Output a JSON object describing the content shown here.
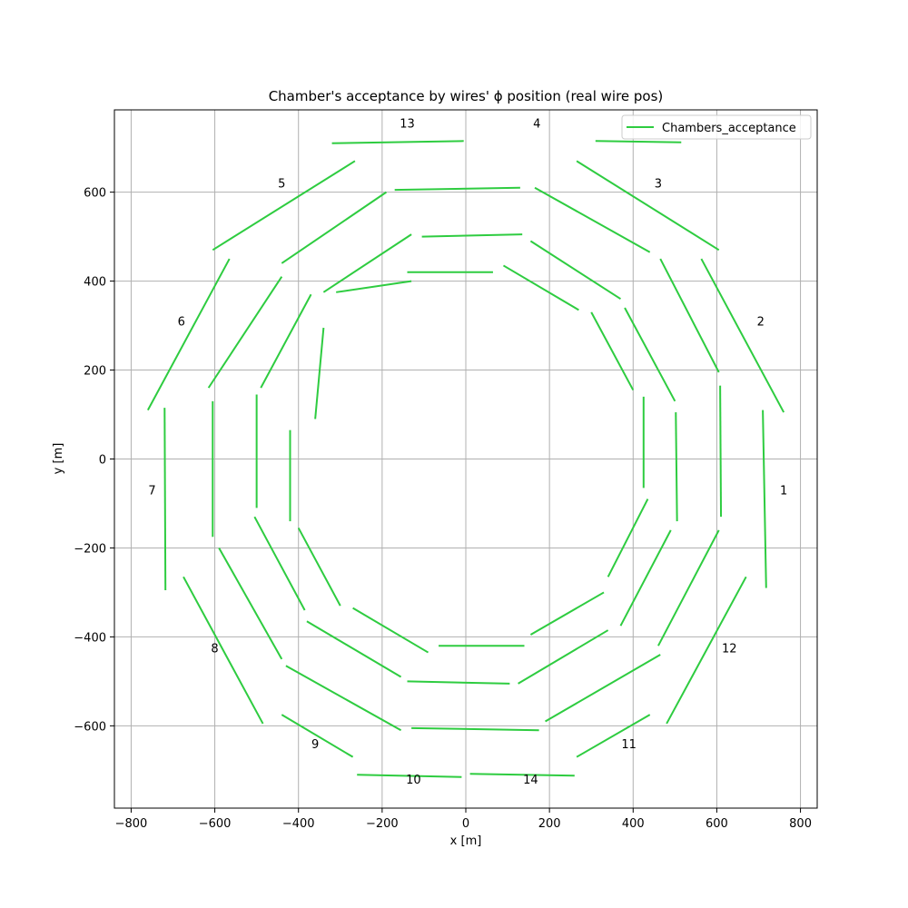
{
  "chart_data": {
    "type": "line",
    "title": "Chamber's acceptance by wires' ϕ position (real wire pos)",
    "xlabel": "x [m]",
    "ylabel": "y [m]",
    "xlim": [
      -840,
      840
    ],
    "ylim": [
      -785,
      785
    ],
    "xticks": [
      -800,
      -600,
      -400,
      -200,
      0,
      200,
      400,
      600,
      800
    ],
    "yticks": [
      -600,
      -400,
      -200,
      0,
      200,
      400,
      600
    ],
    "grid": true,
    "legend": {
      "placement": "top-right",
      "entries": [
        "Chambers_acceptance"
      ]
    },
    "series_color": "#2ecc40",
    "series": [
      {
        "name": "Chambers_acceptance",
        "segments": [
          [
            [
              710,
              110
            ],
            [
              718,
              -290
            ]
          ],
          [
            [
              760,
              105
            ],
            [
              563,
              450
            ]
          ],
          [
            [
              605,
              470
            ],
            [
              265,
              670
            ]
          ],
          [
            [
              515,
              712
            ],
            [
              310,
              715
            ]
          ],
          [
            [
              -320,
              710
            ],
            [
              -5,
              715
            ]
          ],
          [
            [
              -605,
              470
            ],
            [
              -265,
              670
            ]
          ],
          [
            [
              -760,
              110
            ],
            [
              -565,
              450
            ]
          ],
          [
            [
              -720,
              115
            ],
            [
              -718,
              -295
            ]
          ],
          [
            [
              -675,
              -265
            ],
            [
              -485,
              -595
            ]
          ],
          [
            [
              -440,
              -575
            ],
            [
              -270,
              -670
            ]
          ],
          [
            [
              -260,
              -710
            ],
            [
              -10,
              -715
            ]
          ],
          [
            [
              10,
              -708
            ],
            [
              260,
              -712
            ]
          ],
          [
            [
              265,
              -670
            ],
            [
              440,
              -575
            ]
          ],
          [
            [
              480,
              -595
            ],
            [
              670,
              -265
            ]
          ],
          [
            [
              608,
              165
            ],
            [
              610,
              -130
            ]
          ],
          [
            [
              605,
              195
            ],
            [
              465,
              450
            ]
          ],
          [
            [
              440,
              465
            ],
            [
              165,
              610
            ]
          ],
          [
            [
              130,
              610
            ],
            [
              -170,
              605
            ]
          ],
          [
            [
              -190,
              600
            ],
            [
              -440,
              440
            ]
          ],
          [
            [
              -440,
              410
            ],
            [
              -615,
              160
            ]
          ],
          [
            [
              -605,
              130
            ],
            [
              -605,
              -175
            ]
          ],
          [
            [
              -590,
              -200
            ],
            [
              -440,
              -450
            ]
          ],
          [
            [
              -430,
              -465
            ],
            [
              -155,
              -610
            ]
          ],
          [
            [
              -130,
              -605
            ],
            [
              175,
              -610
            ]
          ],
          [
            [
              190,
              -590
            ],
            [
              465,
              -440
            ]
          ],
          [
            [
              460,
              -420
            ],
            [
              605,
              -160
            ]
          ],
          [
            [
              502,
              105
            ],
            [
              505,
              -140
            ]
          ],
          [
            [
              500,
              130
            ],
            [
              380,
              340
            ]
          ],
          [
            [
              370,
              360
            ],
            [
              155,
              490
            ]
          ],
          [
            [
              135,
              505
            ],
            [
              -105,
              500
            ]
          ],
          [
            [
              -130,
              505
            ],
            [
              -340,
              375
            ]
          ],
          [
            [
              -370,
              370
            ],
            [
              -490,
              160
            ]
          ],
          [
            [
              -500,
              145
            ],
            [
              -500,
              -110
            ]
          ],
          [
            [
              -505,
              -130
            ],
            [
              -385,
              -340
            ]
          ],
          [
            [
              -380,
              -365
            ],
            [
              -155,
              -490
            ]
          ],
          [
            [
              -140,
              -500
            ],
            [
              105,
              -505
            ]
          ],
          [
            [
              125,
              -505
            ],
            [
              340,
              -385
            ]
          ],
          [
            [
              370,
              -375
            ],
            [
              490,
              -160
            ]
          ],
          [
            [
              425,
              140
            ],
            [
              425,
              -65
            ]
          ],
          [
            [
              400,
              155
            ],
            [
              300,
              330
            ]
          ],
          [
            [
              270,
              335
            ],
            [
              90,
              435
            ]
          ],
          [
            [
              65,
              420
            ],
            [
              -140,
              420
            ]
          ],
          [
            [
              -130,
              400
            ],
            [
              -310,
              375
            ]
          ],
          [
            [
              -340,
              295
            ],
            [
              -360,
              90
            ]
          ],
          [
            [
              -420,
              65
            ],
            [
              -420,
              -140
            ]
          ],
          [
            [
              -400,
              -155
            ],
            [
              -300,
              -330
            ]
          ],
          [
            [
              -270,
              -335
            ],
            [
              -90,
              -435
            ]
          ],
          [
            [
              -65,
              -420
            ],
            [
              140,
              -420
            ]
          ],
          [
            [
              155,
              -395
            ],
            [
              330,
              -300
            ]
          ],
          [
            [
              340,
              -265
            ],
            [
              435,
              -90
            ]
          ]
        ]
      }
    ],
    "chamber_labels": [
      {
        "text": "1",
        "x": 760,
        "y": -80
      },
      {
        "text": "2",
        "x": 705,
        "y": 300
      },
      {
        "text": "3",
        "x": 460,
        "y": 610
      },
      {
        "text": "4",
        "x": 170,
        "y": 745
      },
      {
        "text": "13",
        "x": -140,
        "y": 745
      },
      {
        "text": "5",
        "x": -440,
        "y": 610
      },
      {
        "text": "6",
        "x": -680,
        "y": 300
      },
      {
        "text": "7",
        "x": -750,
        "y": -80
      },
      {
        "text": "8",
        "x": -600,
        "y": -435
      },
      {
        "text": "9",
        "x": -360,
        "y": -650
      },
      {
        "text": "10",
        "x": -125,
        "y": -730
      },
      {
        "text": "14",
        "x": 155,
        "y": -730
      },
      {
        "text": "11",
        "x": 390,
        "y": -650
      },
      {
        "text": "12",
        "x": 630,
        "y": -435
      }
    ]
  }
}
